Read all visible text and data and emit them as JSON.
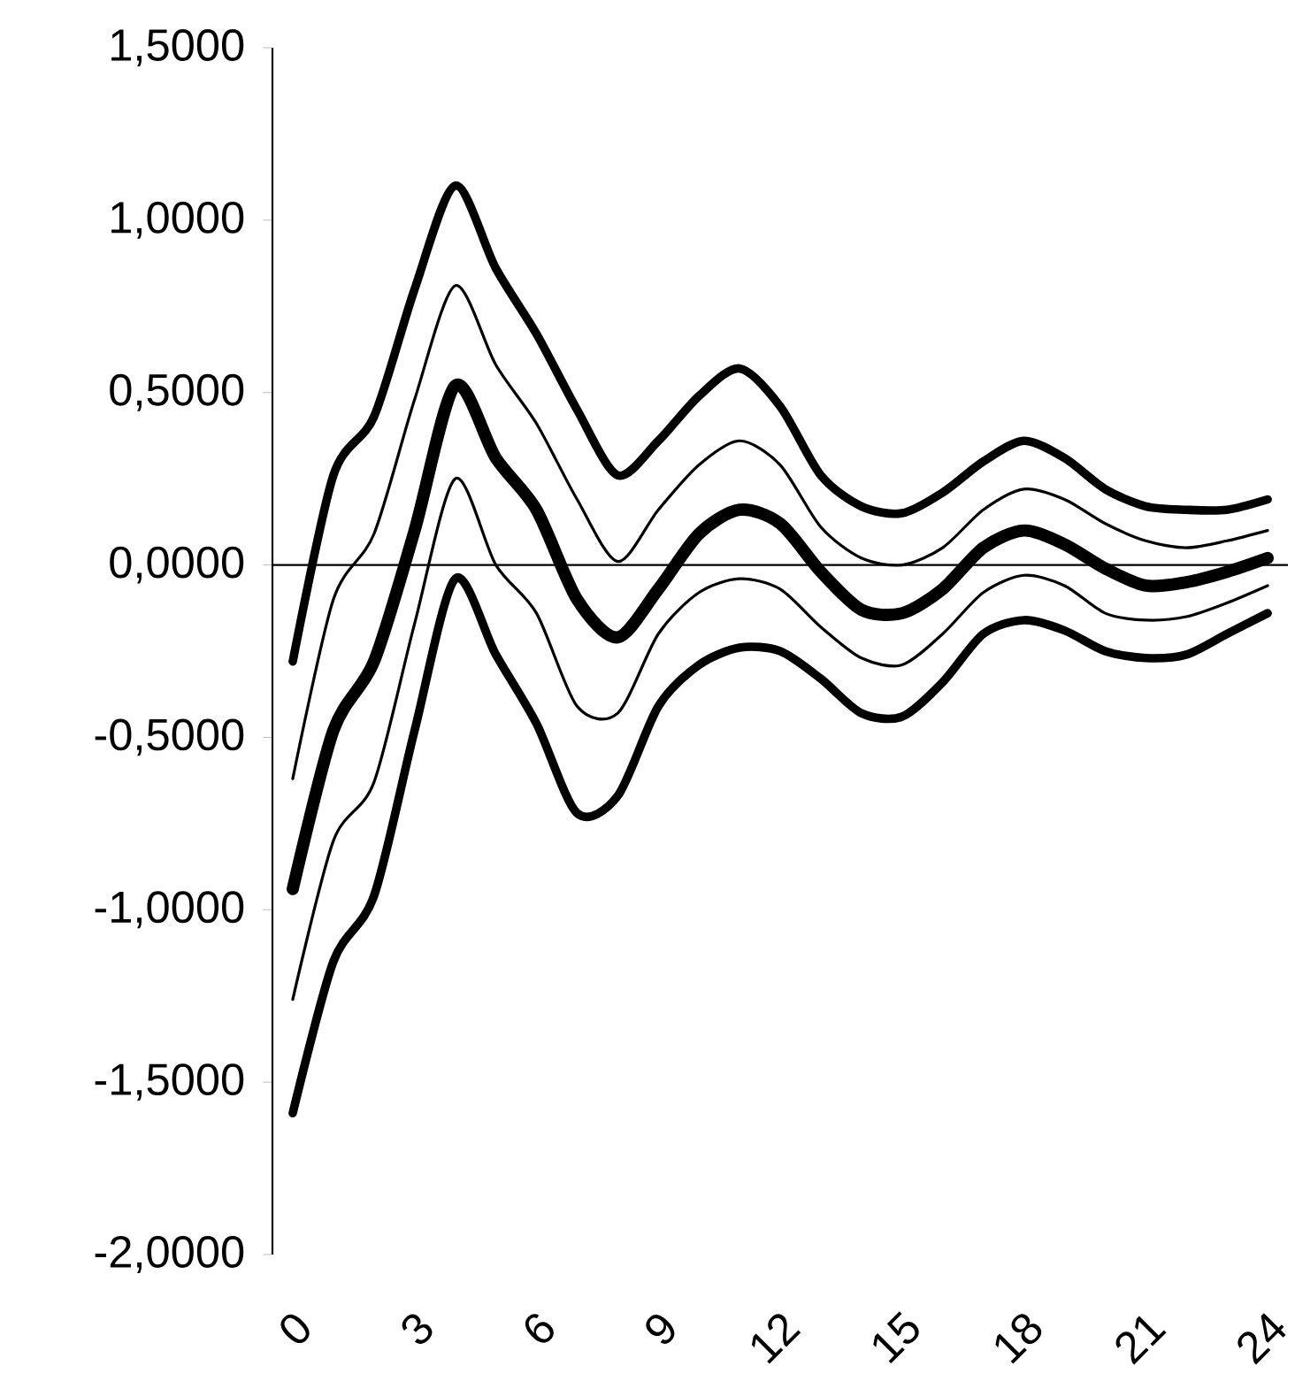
{
  "chart_data": {
    "type": "line",
    "categories": [
      "0",
      null,
      null,
      "3",
      null,
      null,
      "6",
      null,
      null,
      "9",
      null,
      null,
      "12",
      null,
      null,
      "15",
      null,
      null,
      "18",
      null,
      null,
      "21",
      null,
      null,
      "24"
    ],
    "ylim": [
      -2,
      1.5
    ],
    "yticks": [
      {
        "value": -2,
        "label": "-2,0000"
      },
      {
        "value": -1.5,
        "label": "-1,5000"
      },
      {
        "value": -1,
        "label": "-1,0000"
      },
      {
        "value": -0.5,
        "label": "-0,5000"
      },
      {
        "value": 0,
        "label": "0,0000"
      },
      {
        "value": 0.5,
        "label": "0,5000"
      },
      {
        "value": 1,
        "label": "1,0000"
      },
      {
        "value": 1.5,
        "label": "1,5000"
      }
    ],
    "series": [
      {
        "color": "#000000",
        "values": [
          -0.28,
          0.26,
          0.43,
          0.8,
          1.1,
          0.86,
          0.67,
          0.45,
          0.26,
          0.36,
          0.49,
          0.57,
          0.46,
          0.26,
          0.17,
          0.15,
          0.21,
          0.3,
          0.36,
          0.31,
          0.22,
          0.17,
          0.16,
          0.16,
          0.19
        ]
      },
      {
        "color": "#000000",
        "values": [
          -0.62,
          -0.1,
          0.09,
          0.48,
          0.81,
          0.58,
          0.41,
          0.19,
          0.01,
          0.16,
          0.29,
          0.36,
          0.29,
          0.11,
          0.02,
          0.0,
          0.05,
          0.16,
          0.22,
          0.19,
          0.12,
          0.07,
          0.05,
          0.07,
          0.1
        ]
      },
      {
        "color": "#000000",
        "values": [
          -0.94,
          -0.48,
          -0.28,
          0.1,
          0.52,
          0.31,
          0.16,
          -0.1,
          -0.21,
          -0.07,
          0.09,
          0.16,
          0.12,
          -0.02,
          -0.13,
          -0.14,
          -0.07,
          0.05,
          0.1,
          0.06,
          -0.01,
          -0.06,
          -0.05,
          -0.02,
          0.02
        ]
      },
      {
        "color": "#000000",
        "values": [
          -1.26,
          -0.8,
          -0.63,
          -0.17,
          0.25,
          0.0,
          -0.14,
          -0.41,
          -0.43,
          -0.2,
          -0.08,
          -0.04,
          -0.07,
          -0.18,
          -0.27,
          -0.29,
          -0.2,
          -0.08,
          -0.03,
          -0.06,
          -0.14,
          -0.16,
          -0.15,
          -0.11,
          -0.06
        ]
      },
      {
        "color": "#000000",
        "values": [
          -1.59,
          -1.15,
          -0.96,
          -0.48,
          -0.04,
          -0.26,
          -0.46,
          -0.72,
          -0.67,
          -0.41,
          -0.29,
          -0.24,
          -0.25,
          -0.33,
          -0.43,
          -0.44,
          -0.34,
          -0.2,
          -0.16,
          -0.19,
          -0.25,
          -0.27,
          -0.26,
          -0.2,
          -0.14
        ]
      }
    ]
  }
}
